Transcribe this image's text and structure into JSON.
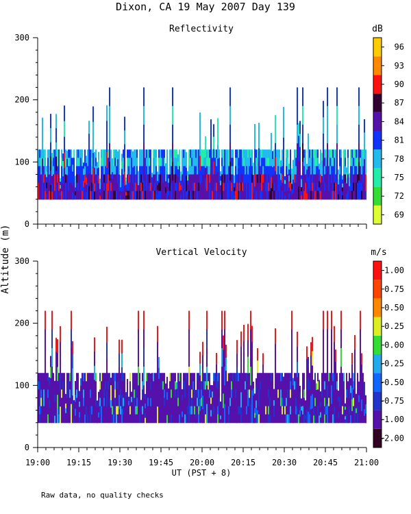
{
  "figure": {
    "title": "Dixon, CA 19 May 2007  Day 139",
    "ylabel": "Altitude (m)",
    "xlabel": "UT  (PST + 8)",
    "footnote": "Raw data, no quality checks"
  },
  "chart_data": [
    {
      "type": "heatmap",
      "title": "Reflectivity",
      "xlabel": "UT  (PST + 8)",
      "ylabel": "Altitude (m)",
      "x_range": [
        "19:00",
        "21:00"
      ],
      "ylim": [
        0,
        300
      ],
      "yticks": [
        0,
        100,
        200,
        300
      ],
      "colorbar": {
        "unit": "dB",
        "labels": [
          "69",
          "72",
          "75",
          "78",
          "81",
          "84",
          "87",
          "90",
          "93",
          "96"
        ],
        "colors": [
          "#ddff33",
          "#33dd33",
          "#22eeaa",
          "#22bbee",
          "#1133ff",
          "#5511aa",
          "#330033",
          "#ff1111",
          "#ff8800",
          "#ffcc00"
        ]
      },
      "data_bottom_altitude": 40,
      "base_echo_top_altitude": 120,
      "max_echo_top_altitude": 220,
      "legend": "right"
    },
    {
      "type": "heatmap",
      "title": "Vertical Velocity",
      "xlabel": "UT  (PST + 8)",
      "ylabel": "Altitude (m)",
      "x_range": [
        "19:00",
        "21:00"
      ],
      "ylim": [
        0,
        300
      ],
      "yticks": [
        0,
        100,
        200,
        300
      ],
      "colorbar": {
        "unit": "m/s",
        "labels": [
          "-2.00",
          "-1.00",
          "-0.75",
          "-0.50",
          "-0.25",
          "0.00",
          "0.25",
          "0.50",
          "0.75",
          "1.00"
        ],
        "colors": [
          "#330022",
          "#5511aa",
          "#2233cc",
          "#1166ff",
          "#22aaee",
          "#33dd33",
          "#ddee22",
          "#ff8800",
          "#ff4400",
          "#ff1111"
        ]
      },
      "data_bottom_altitude": 40,
      "base_echo_top_altitude": 120,
      "max_echo_top_altitude": 220,
      "legend": "right"
    }
  ],
  "time_axis": {
    "tick_labels": [
      "19:00",
      "19:15",
      "19:30",
      "19:45",
      "20:00",
      "20:15",
      "20:30",
      "20:45",
      "21:00"
    ],
    "minor_tick_minutes": 3,
    "start_minutes": 0,
    "end_minutes": 120
  }
}
